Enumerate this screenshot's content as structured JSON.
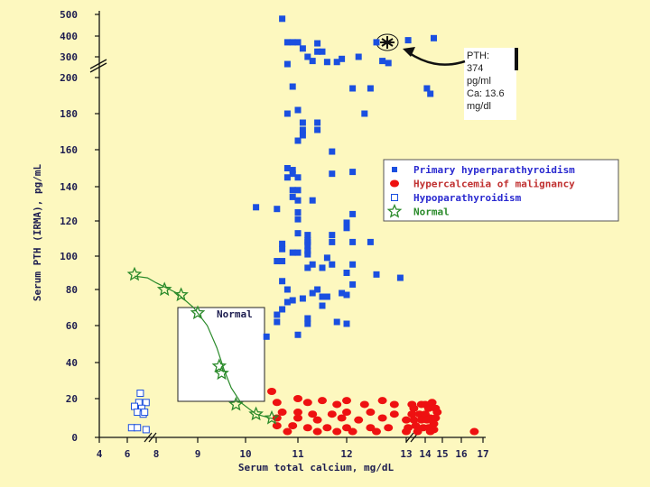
{
  "chart_data": {
    "type": "scatter",
    "xlabel": "Serum total calcium, mg/dL",
    "ylabel": "Serum PTH (IRMA), pg/mL",
    "x_ticks": [
      "4",
      "6",
      "8",
      "9",
      "10",
      "11",
      "12",
      "13",
      "14",
      "15",
      "16",
      "17"
    ],
    "y_ticks": [
      "0",
      "20",
      "40",
      "60",
      "80",
      "100",
      "120",
      "140",
      "160",
      "180",
      "200",
      "300",
      "400",
      "500"
    ],
    "x_scale_breaks": [
      "6-8",
      "13"
    ],
    "y_scale_breaks": [
      "200-300"
    ],
    "legend": [
      {
        "name": "Primary hyperparathyroidism",
        "marker": "filled-square",
        "color": "#1a4fe0"
      },
      {
        "name": "Hypercalcemia of malignancy",
        "marker": "filled-circle",
        "color": "#ee1111"
      },
      {
        "name": "Hypoparathyroidism",
        "marker": "open-square",
        "color": "#1a4fe0"
      },
      {
        "name": "Normal",
        "marker": "open-star",
        "color": "#2a8a2a"
      }
    ],
    "annotation": {
      "lines": [
        "PTH:",
        "374",
        "pg/ml",
        "Ca: 13.6",
        "mg/dl"
      ]
    },
    "normal_box_label": "Normal",
    "series": [
      {
        "name": "Primary hyperparathyroidism",
        "points": [
          [
            10.7,
            480
          ],
          [
            14.5,
            390
          ],
          [
            13.1,
            380
          ],
          [
            10.8,
            370
          ],
          [
            10.9,
            370
          ],
          [
            11.0,
            370
          ],
          [
            11.4,
            365
          ],
          [
            12.5,
            370
          ],
          [
            11.1,
            340
          ],
          [
            11.4,
            325
          ],
          [
            11.5,
            325
          ],
          [
            11.2,
            300
          ],
          [
            12.2,
            300
          ],
          [
            11.9,
            290
          ],
          [
            11.3,
            280
          ],
          [
            11.6,
            275
          ],
          [
            11.8,
            275
          ],
          [
            12.6,
            280
          ],
          [
            12.7,
            270
          ],
          [
            10.8,
            265
          ],
          [
            10.9,
            195
          ],
          [
            12.1,
            194
          ],
          [
            12.4,
            194
          ],
          [
            14.1,
            194
          ],
          [
            14.3,
            191
          ],
          [
            10.8,
            180
          ],
          [
            11.0,
            182
          ],
          [
            12.3,
            180
          ],
          [
            11.1,
            175
          ],
          [
            11.4,
            175
          ],
          [
            11.1,
            171
          ],
          [
            11.4,
            171
          ],
          [
            11.1,
            168
          ],
          [
            11.0,
            165
          ],
          [
            11.7,
            159
          ],
          [
            10.8,
            150
          ],
          [
            10.9,
            149
          ],
          [
            10.9,
            147
          ],
          [
            10.8,
            145
          ],
          [
            11.0,
            145
          ],
          [
            11.7,
            147
          ],
          [
            12.1,
            148
          ],
          [
            10.9,
            138
          ],
          [
            11.0,
            138
          ],
          [
            10.9,
            134
          ],
          [
            11.0,
            132
          ],
          [
            11.3,
            132
          ],
          [
            10.2,
            128
          ],
          [
            10.6,
            127
          ],
          [
            11.0,
            125
          ],
          [
            11.0,
            121
          ],
          [
            11.0,
            113
          ],
          [
            11.2,
            108
          ],
          [
            12.1,
            124
          ],
          [
            12.0,
            119
          ],
          [
            12.0,
            116
          ],
          [
            11.7,
            112
          ],
          [
            11.2,
            112
          ],
          [
            11.2,
            109
          ],
          [
            11.2,
            106
          ],
          [
            11.7,
            108
          ],
          [
            12.1,
            108
          ],
          [
            12.4,
            108
          ],
          [
            10.7,
            107
          ],
          [
            11.2,
            103
          ],
          [
            10.9,
            102
          ],
          [
            11.0,
            102
          ],
          [
            11.2,
            101
          ],
          [
            10.7,
            104
          ],
          [
            11.6,
            99
          ],
          [
            10.6,
            97
          ],
          [
            10.7,
            97
          ],
          [
            11.3,
            95
          ],
          [
            11.7,
            95
          ],
          [
            12.1,
            95
          ],
          [
            11.2,
            93
          ],
          [
            11.5,
            93
          ],
          [
            12.0,
            90
          ],
          [
            12.5,
            89
          ],
          [
            12.9,
            87
          ],
          [
            10.7,
            85
          ],
          [
            10.8,
            80
          ],
          [
            11.4,
            80
          ],
          [
            11.3,
            78
          ],
          [
            11.5,
            76
          ],
          [
            10.9,
            74
          ],
          [
            11.1,
            75
          ],
          [
            11.6,
            76
          ],
          [
            11.9,
            78
          ],
          [
            12.1,
            83
          ],
          [
            12.0,
            77
          ],
          [
            10.8,
            73
          ],
          [
            11.5,
            71
          ],
          [
            10.7,
            69
          ],
          [
            10.6,
            66
          ],
          [
            11.2,
            64
          ],
          [
            10.6,
            62
          ],
          [
            11.2,
            61
          ],
          [
            11.8,
            62
          ],
          [
            12.0,
            61
          ],
          [
            11.0,
            55
          ],
          [
            10.4,
            54
          ]
        ]
      },
      {
        "name": "Hypercalcemia of malignancy",
        "points": [
          [
            10.5,
            24
          ],
          [
            11.0,
            20
          ],
          [
            10.6,
            18
          ],
          [
            11.2,
            18
          ],
          [
            11.5,
            19
          ],
          [
            12.0,
            19
          ],
          [
            11.8,
            17
          ],
          [
            12.3,
            17
          ],
          [
            12.6,
            19
          ],
          [
            12.8,
            17
          ],
          [
            13.3,
            17
          ],
          [
            13.8,
            17
          ],
          [
            13.4,
            15
          ],
          [
            14.0,
            17
          ],
          [
            14.2,
            15
          ],
          [
            14.4,
            18
          ],
          [
            14.6,
            15
          ],
          [
            14.7,
            13
          ],
          [
            10.7,
            13
          ],
          [
            11.0,
            13
          ],
          [
            11.3,
            12
          ],
          [
            11.7,
            12
          ],
          [
            12.0,
            13
          ],
          [
            12.4,
            13
          ],
          [
            12.8,
            12
          ],
          [
            13.3,
            12
          ],
          [
            13.7,
            12
          ],
          [
            14.0,
            12
          ],
          [
            14.3,
            10
          ],
          [
            14.6,
            10
          ],
          [
            10.6,
            10
          ],
          [
            11.0,
            10
          ],
          [
            11.4,
            9
          ],
          [
            11.9,
            10
          ],
          [
            12.2,
            9
          ],
          [
            12.6,
            10
          ],
          [
            13.0,
            9
          ],
          [
            13.4,
            9
          ],
          [
            13.8,
            9
          ],
          [
            14.1,
            9
          ],
          [
            14.5,
            7
          ],
          [
            10.6,
            6
          ],
          [
            10.9,
            6
          ],
          [
            11.2,
            5
          ],
          [
            11.6,
            5
          ],
          [
            12.0,
            5
          ],
          [
            12.4,
            5
          ],
          [
            12.7,
            5
          ],
          [
            13.1,
            5
          ],
          [
            13.5,
            6
          ],
          [
            13.9,
            5
          ],
          [
            14.2,
            5
          ],
          [
            14.5,
            4
          ],
          [
            10.8,
            3
          ],
          [
            11.4,
            3
          ],
          [
            11.8,
            3
          ],
          [
            12.1,
            3
          ],
          [
            12.5,
            3
          ],
          [
            13.0,
            3
          ],
          [
            13.6,
            3
          ],
          [
            14.3,
            3
          ],
          [
            16.6,
            3
          ]
        ]
      },
      {
        "name": "Hypoparathyroidism",
        "points": [
          [
            6.9,
            23
          ],
          [
            6.8,
            18
          ],
          [
            7.3,
            18
          ],
          [
            7.0,
            15
          ],
          [
            6.5,
            16
          ],
          [
            6.7,
            13
          ],
          [
            7.1,
            12
          ],
          [
            7.2,
            13
          ],
          [
            6.3,
            5
          ],
          [
            6.7,
            5
          ],
          [
            7.3,
            4
          ]
        ]
      },
      {
        "name": "Normal",
        "points": [
          [
            6.5,
            89
          ],
          [
            8.2,
            80
          ],
          [
            8.6,
            77
          ],
          [
            9.0,
            67
          ],
          [
            9.45,
            38
          ],
          [
            9.5,
            34
          ],
          [
            9.8,
            17
          ],
          [
            10.2,
            12
          ],
          [
            10.5,
            10
          ]
        ]
      }
    ],
    "normal_curve": [
      [
        6.5,
        88
      ],
      [
        7.4,
        87
      ],
      [
        8.0,
        84
      ],
      [
        8.5,
        78
      ],
      [
        8.9,
        70
      ],
      [
        9.2,
        60
      ],
      [
        9.4,
        48
      ],
      [
        9.55,
        36
      ],
      [
        9.7,
        26
      ],
      [
        9.9,
        18
      ],
      [
        10.2,
        12
      ],
      [
        10.6,
        9
      ]
    ]
  }
}
